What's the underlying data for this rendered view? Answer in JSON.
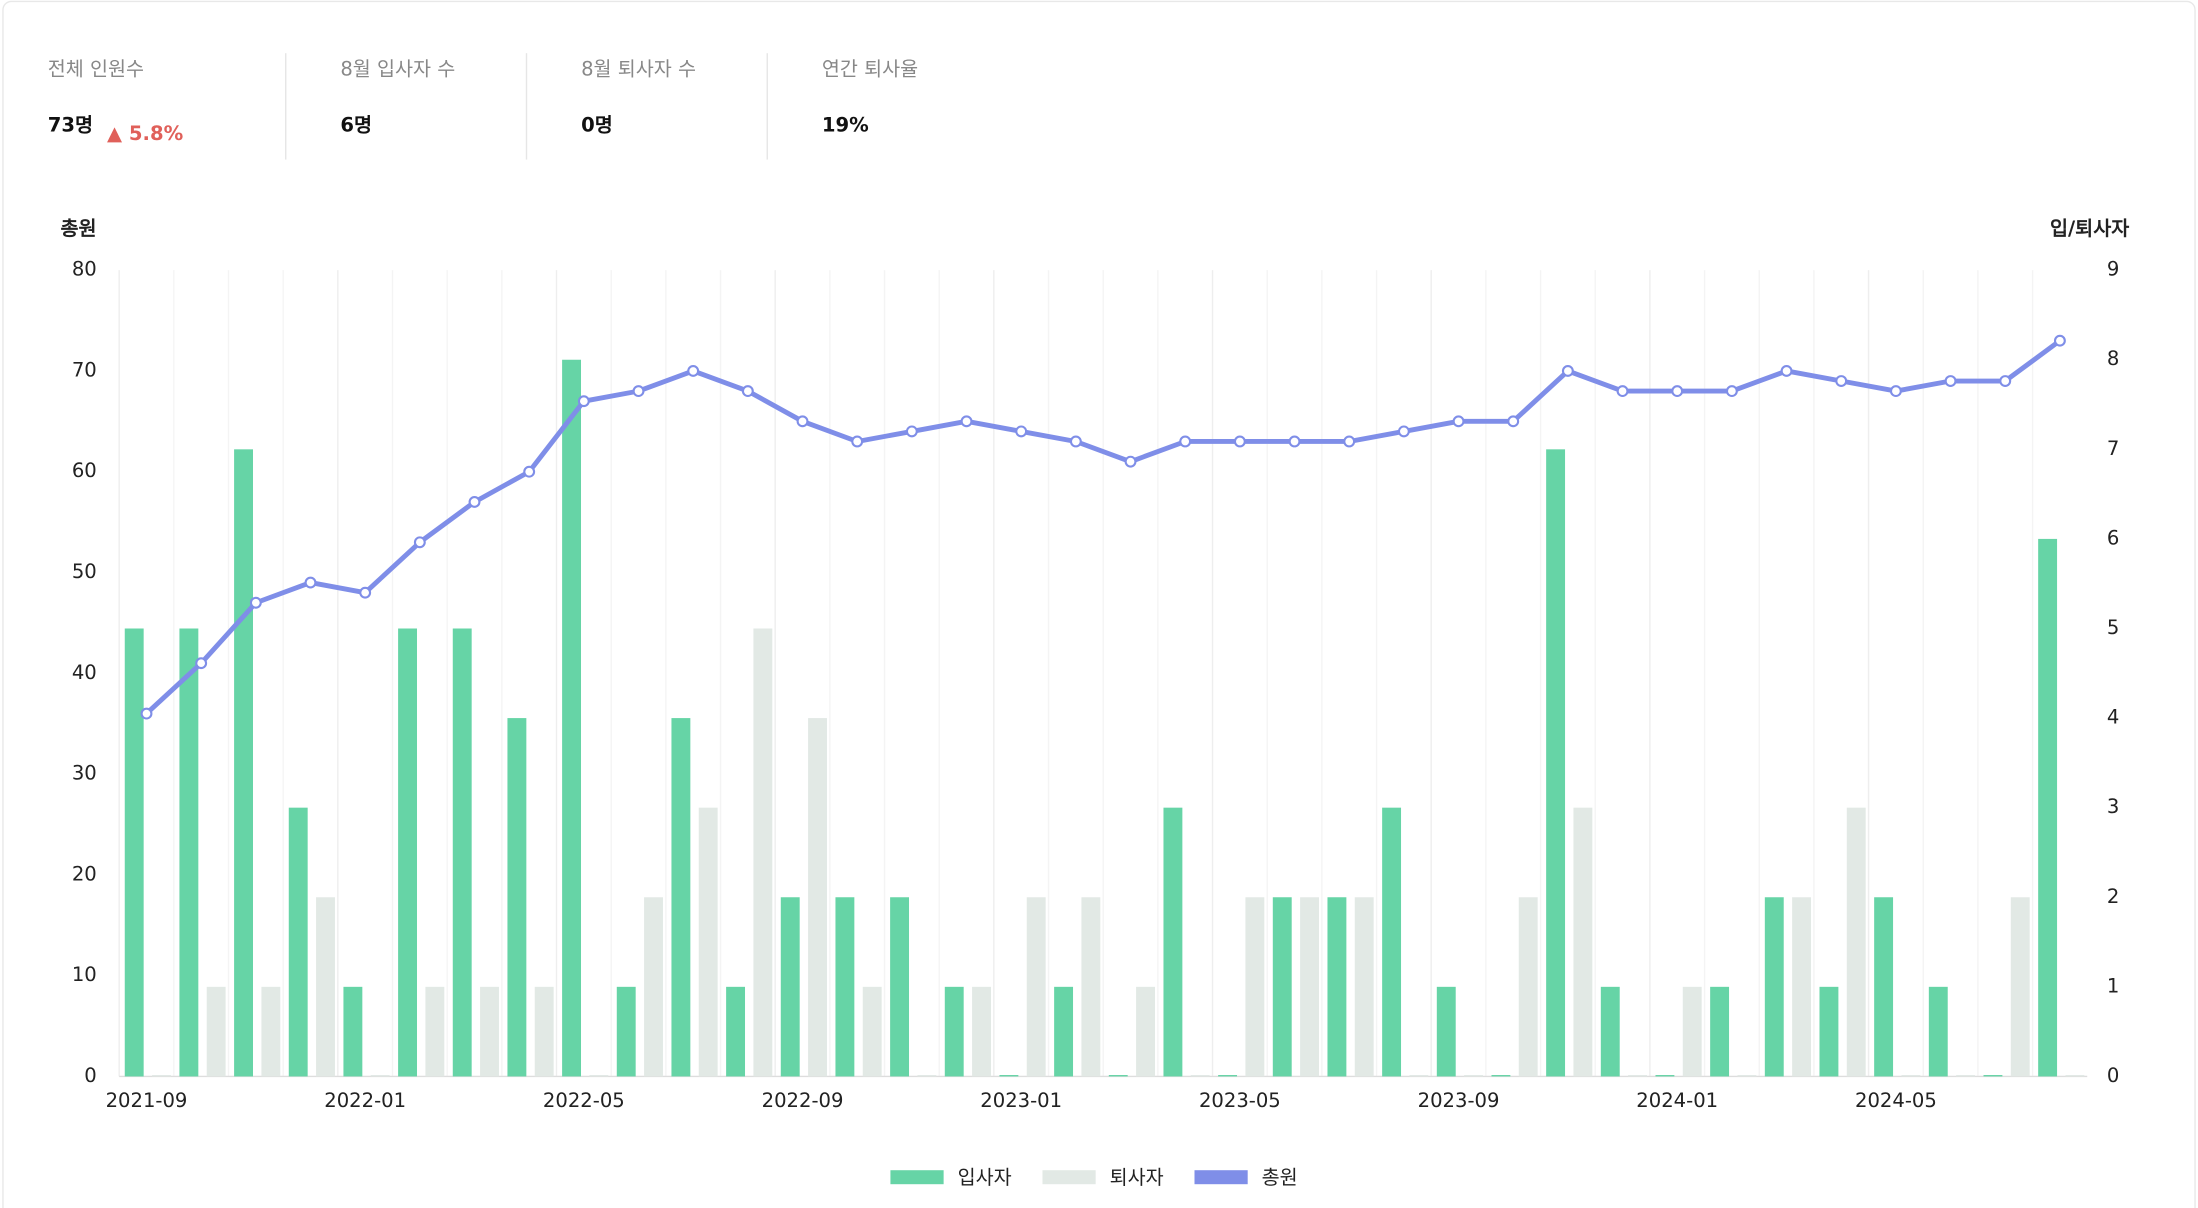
{
  "stats": [
    {
      "label": "전체 인원수",
      "value": "73명",
      "change": "▲ 5.8%"
    },
    {
      "label": "8월 입사자 수",
      "value": "6명"
    },
    {
      "label": "8월 퇴사자 수",
      "value": "0명"
    },
    {
      "label": "연간 퇴사율",
      "value": "19%"
    }
  ],
  "chart_data": {
    "type": "bar-line",
    "y_label": "총원",
    "y2_label": "입/퇴사자",
    "categories": [
      "2021-09",
      null,
      null,
      null,
      "2022-01",
      null,
      null,
      null,
      "2022-05",
      null,
      null,
      null,
      "2022-09",
      null,
      null,
      null,
      "2023-01",
      null,
      null,
      null,
      "2023-05",
      null,
      null,
      null,
      "2023-09",
      null,
      null,
      null,
      "2024-01",
      null,
      null,
      null,
      "2024-05",
      null,
      null,
      null
    ],
    "series": [
      {
        "name": "입사자",
        "type": "bar",
        "axis": "y2",
        "color": "#66d4a6",
        "values": [
          5,
          5,
          7,
          3,
          1,
          5,
          5,
          4,
          8,
          1,
          4,
          1,
          2,
          2,
          2,
          1,
          0,
          1,
          0,
          3,
          0,
          2,
          2,
          3,
          1,
          0,
          7,
          1,
          0,
          1,
          2,
          1,
          2,
          1,
          0,
          6
        ]
      },
      {
        "name": "퇴사자",
        "type": "bar",
        "axis": "y2",
        "color": "#e2e9e5",
        "values": [
          0,
          1,
          1,
          2,
          0,
          1,
          1,
          1,
          0,
          2,
          3,
          5,
          4,
          1,
          0,
          1,
          2,
          2,
          1,
          0,
          2,
          2,
          2,
          0,
          0,
          2,
          3,
          0,
          1,
          0,
          2,
          3,
          0,
          0,
          2,
          0
        ]
      },
      {
        "name": "총원",
        "type": "line",
        "color": "#7f8ee8",
        "values": [
          36,
          41,
          47,
          49,
          48,
          53,
          57,
          60,
          67,
          68,
          70,
          68,
          65,
          63,
          64,
          65,
          64,
          63,
          61,
          63,
          63,
          63,
          63,
          64,
          65,
          65,
          70,
          68,
          68,
          68,
          70,
          69,
          68,
          69,
          69,
          73
        ]
      }
    ],
    "ylim": [
      0,
      80
    ],
    "yticks": [
      0,
      10,
      20,
      30,
      40,
      50,
      60,
      70,
      80
    ],
    "y2lim": [
      0,
      9
    ],
    "y2ticks": [
      0,
      1,
      2,
      3,
      4,
      5,
      6,
      7,
      8,
      9
    ],
    "grid": true
  }
}
